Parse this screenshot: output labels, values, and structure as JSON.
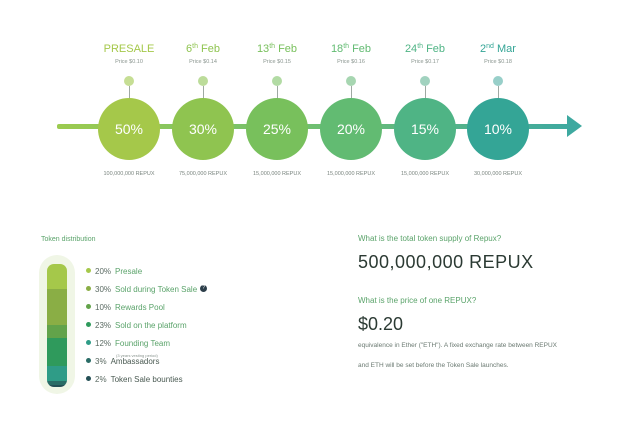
{
  "timeline": {
    "stages": [
      {
        "title": "PRESALE",
        "sup": "",
        "suffix": "",
        "price": "Price $0.10",
        "discount": "50%",
        "tokens": "100,000,000 REPUX",
        "color": "#a5c84a",
        "dot": "#c6de94"
      },
      {
        "title": "6",
        "sup": "th",
        "suffix": " Feb",
        "price": "Price $0.14",
        "discount": "30%",
        "tokens": "75,000,000 REPUX",
        "color": "#8fc450",
        "dot": "#bcdc9a"
      },
      {
        "title": "13",
        "sup": "th",
        "suffix": " Feb",
        "price": "Price $0.15",
        "discount": "25%",
        "tokens": "15,000,000 REPUX",
        "color": "#78c05c",
        "dot": "#b2dba4"
      },
      {
        "title": "18",
        "sup": "th",
        "suffix": " Feb",
        "price": "Price $0.16",
        "discount": "20%",
        "tokens": "15,000,000 REPUX",
        "color": "#62bb72",
        "dot": "#a7d6b1"
      },
      {
        "title": "24",
        "sup": "th",
        "suffix": " Feb",
        "price": "Price $0.17",
        "discount": "15%",
        "tokens": "15,000,000 REPUX",
        "color": "#4fb485",
        "dot": "#a1d2bf"
      },
      {
        "title": "2",
        "sup": "nd",
        "suffix": " Mar",
        "price": "Price $0.18",
        "discount": "10%",
        "tokens": "30,000,000 REPUX",
        "color": "#34a596",
        "dot": "#98cfc9"
      }
    ]
  },
  "distribution": {
    "title": "Token distribution",
    "items": [
      {
        "pct": "20%",
        "label": "Presale",
        "color": "#a5c84a",
        "sub": ""
      },
      {
        "pct": "30%",
        "label": "Sold during Token Sale",
        "color": "#8aae45",
        "sub": "",
        "info": "?"
      },
      {
        "pct": "10%",
        "label": "Rewards Pool",
        "color": "#62a34a",
        "sub": ""
      },
      {
        "pct": "23%",
        "label": "Sold on the platform",
        "color": "#2f9a5c",
        "sub": ""
      },
      {
        "pct": "12%",
        "label": "Founding Team",
        "color": "#2f9c87",
        "sub": "(3 years vesting period)"
      },
      {
        "pct": "3%",
        "label": "Ambassadors",
        "color": "#2a6c66",
        "sub": ""
      },
      {
        "pct": "2%",
        "label": "Token Sale bounties",
        "color": "#244f55",
        "sub": ""
      }
    ]
  },
  "info": {
    "supply_question": "What is the total token supply of Repux?",
    "supply_value": "500,000,000 REPUX",
    "price_question": "What is the price of one REPUX?",
    "price_value": "$0.20",
    "price_desc_line1": "equivalence in Ether (\"ETH\"). A fixed exchange rate between REPUX",
    "price_desc_line2": "and ETH will be set before the Token Sale launches."
  }
}
